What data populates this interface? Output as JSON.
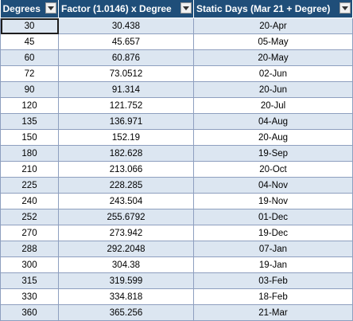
{
  "table": {
    "headers": [
      "Degrees",
      "Factor (1.0146) x Degree",
      "Static Days (Mar 21 + Degree)"
    ],
    "rows": [
      [
        "30",
        "30.438",
        "20-Apr"
      ],
      [
        "45",
        "45.657",
        "05-May"
      ],
      [
        "60",
        "60.876",
        "20-May"
      ],
      [
        "72",
        "73.0512",
        "02-Jun"
      ],
      [
        "90",
        "91.314",
        "20-Jun"
      ],
      [
        "120",
        "121.752",
        "20-Jul"
      ],
      [
        "135",
        "136.971",
        "04-Aug"
      ],
      [
        "150",
        "152.19",
        "20-Aug"
      ],
      [
        "180",
        "182.628",
        "19-Sep"
      ],
      [
        "210",
        "213.066",
        "20-Oct"
      ],
      [
        "225",
        "228.285",
        "04-Nov"
      ],
      [
        "240",
        "243.504",
        "19-Nov"
      ],
      [
        "252",
        "255.6792",
        "01-Dec"
      ],
      [
        "270",
        "273.942",
        "19-Dec"
      ],
      [
        "288",
        "292.2048",
        "07-Jan"
      ],
      [
        "300",
        "304.38",
        "19-Jan"
      ],
      [
        "315",
        "319.599",
        "03-Feb"
      ],
      [
        "330",
        "334.818",
        "18-Feb"
      ],
      [
        "360",
        "365.256",
        "21-Mar"
      ]
    ],
    "selected_cell": "A2"
  },
  "colors": {
    "header_bg": "#1f4e79",
    "header_text": "#ffffff",
    "band_row": "#dce6f1",
    "plain_row": "#ffffff",
    "grid_line": "#8e9fbf"
  },
  "icons": {
    "filter": "dropdown-arrow-icon"
  }
}
